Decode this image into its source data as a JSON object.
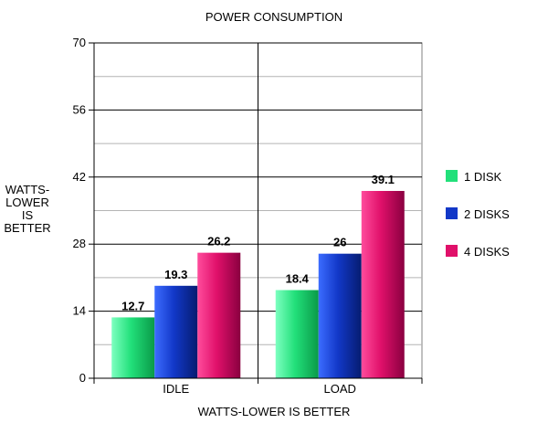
{
  "chart_data": {
    "type": "bar",
    "title": "POWER CONSUMPTION",
    "xlabel": "WATTS-LOWER IS BETTER",
    "ylabel_lines": [
      "WATTS-",
      "LOWER",
      "IS",
      "BETTER"
    ],
    "categories": [
      "IDLE",
      "LOAD"
    ],
    "series": [
      {
        "name": "1 DISK",
        "values": [
          12.7,
          18.4
        ],
        "color": "#22e07a"
      },
      {
        "name": "2 DISKS",
        "values": [
          19.3,
          26
        ],
        "color": "#1238c8"
      },
      {
        "name": "4 DISKS",
        "values": [
          26.2,
          39.1
        ],
        "color": "#e0106a"
      }
    ],
    "ylim": [
      0,
      70
    ],
    "yticks": [
      0,
      14,
      28,
      42,
      56,
      70
    ],
    "grid": true,
    "legend": "right"
  }
}
